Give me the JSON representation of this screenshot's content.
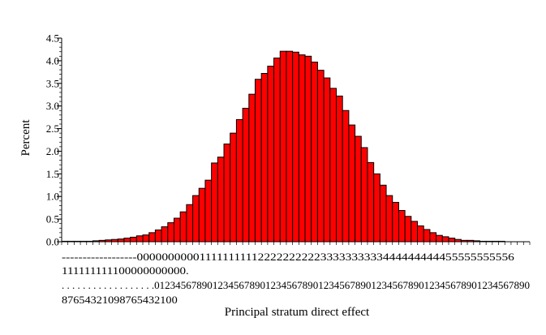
{
  "chart_data": {
    "type": "bar",
    "title": "",
    "xlabel": "Principal stratum direct effect",
    "ylabel": "Percent",
    "ylim": [
      0,
      4.5
    ],
    "y_ticks": [
      "0.0",
      "0.5",
      "1.0",
      "1.5",
      "2.0",
      "2.5",
      "3.0",
      "3.5",
      "4.0",
      "4.5"
    ],
    "x_tick_label_rows": [
      "------------------0000000000111111111122222222223333333333444444444455555555556",
      "111111111100000000000.                                                         ",
      ". . . . . . . . . . . . . . . . . . 01234567890123456789012345678901234567890123456789012345678901234567890",
      "87654321098765432100                                                           "
    ],
    "x_tick_label_lines": [
      "------------------0000000000111111111122222222223333333333444444444455555555556",
      "111111111100000000000.",
      ". . . . . . . . . . . . . . . . . .01234567890123456789012345678901234567890123456789012345678901234567890",
      "87654321098765432100"
    ],
    "bar_fill": "#ff0000",
    "bar_edge": "#000000",
    "values": [
      0.01,
      0.01,
      0.01,
      0.01,
      0.01,
      0.02,
      0.03,
      0.04,
      0.05,
      0.06,
      0.08,
      0.1,
      0.13,
      0.15,
      0.2,
      0.26,
      0.33,
      0.42,
      0.52,
      0.66,
      0.82,
      1.02,
      1.18,
      1.36,
      1.74,
      1.87,
      2.16,
      2.4,
      2.7,
      2.95,
      3.26,
      3.59,
      3.72,
      3.88,
      4.06,
      4.21,
      4.21,
      4.19,
      4.13,
      4.1,
      3.97,
      3.79,
      3.62,
      3.39,
      3.22,
      2.9,
      2.58,
      2.33,
      2.08,
      1.75,
      1.5,
      1.25,
      1.02,
      0.87,
      0.69,
      0.56,
      0.45,
      0.35,
      0.27,
      0.2,
      0.14,
      0.11,
      0.08,
      0.05,
      0.03,
      0.03,
      0.02,
      0.01,
      0.01,
      0.01,
      0.01,
      0.0,
      0.0,
      0.0,
      0.0
    ]
  }
}
